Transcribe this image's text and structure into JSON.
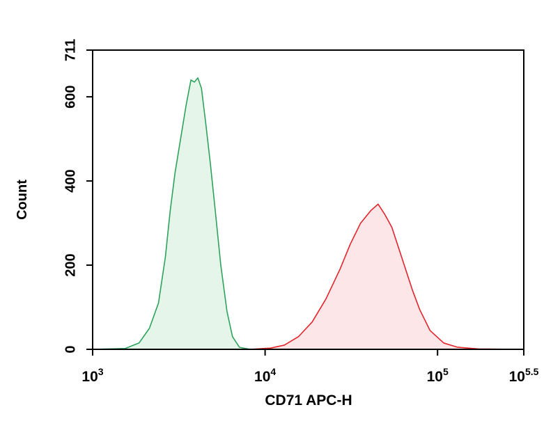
{
  "chart_data": {
    "type": "histogram-overlay",
    "x_label": "CD71 APC-H",
    "y_label": "Count",
    "x_log": true,
    "xlim": [
      1000,
      316227.77
    ],
    "ylim": [
      0,
      711
    ],
    "xticks": [
      {
        "value": 1000,
        "label": "10",
        "exponent": "3"
      },
      {
        "value": 10000,
        "label": "10",
        "exponent": "4"
      },
      {
        "value": 100000,
        "label": "10",
        "exponent": "5"
      },
      {
        "value": 316227.77,
        "label": "10",
        "exponent": "5.5"
      }
    ],
    "yticks": [
      0,
      200,
      400,
      600,
      711
    ],
    "series": [
      {
        "color": "#2ca35a",
        "fill": "#e6f5ea",
        "x": [
          1000,
          1545,
          1858,
          2134,
          2409,
          2642,
          2818,
          3006,
          3236,
          3483,
          3715,
          3890,
          4074,
          4276,
          4519,
          4819,
          5140,
          5534,
          6012,
          6471,
          7096,
          8166
        ],
        "values": [
          0,
          2,
          15,
          50,
          110,
          220,
          330,
          420,
          500,
          580,
          640,
          635,
          645,
          620,
          540,
          440,
          330,
          200,
          90,
          30,
          5,
          0
        ]
      },
      {
        "color": "#e3242b",
        "fill": "#fde6e8",
        "x": [
          8166,
          10770,
          12940,
          15600,
          18750,
          22550,
          27160,
          31190,
          35810,
          41110,
          45190,
          49550,
          54330,
          59570,
          65310,
          71610,
          78700,
          90360,
          108650,
          130620,
          172580,
          306200
        ],
        "values": [
          0,
          3,
          10,
          30,
          65,
          120,
          190,
          250,
          300,
          330,
          345,
          320,
          290,
          240,
          190,
          140,
          95,
          45,
          15,
          5,
          1,
          0
        ]
      }
    ]
  }
}
